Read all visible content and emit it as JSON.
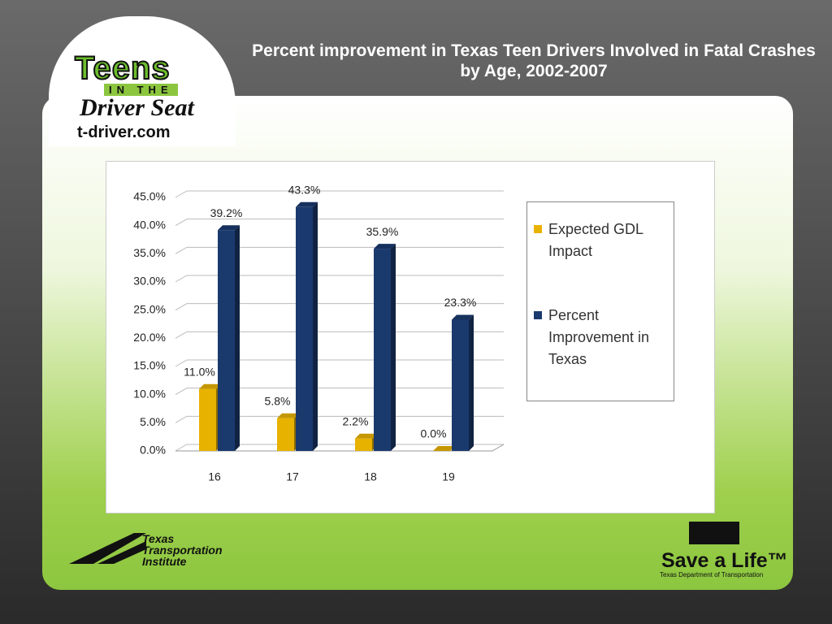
{
  "chart_data": {
    "type": "bar",
    "title": "Percent improvement in Texas Teen Drivers Involved in Fatal Crashes by Age, 2002-2007",
    "categories": [
      "16",
      "17",
      "18",
      "19"
    ],
    "series": [
      {
        "name": "Expected GDL Impact",
        "color": "#e8b200",
        "values": [
          11.0,
          5.8,
          2.2,
          0.0
        ],
        "value_labels": [
          "11.0%",
          "5.8%",
          "2.2%",
          "0.0%"
        ]
      },
      {
        "name": "Percent Improvement in Texas",
        "color": "#1a3a6e",
        "values": [
          39.2,
          43.3,
          35.9,
          23.3
        ],
        "value_labels": [
          "39.2%",
          "43.3%",
          "35.9%",
          "23.3%"
        ]
      }
    ],
    "ylim": [
      0,
      45
    ],
    "yticks": [
      {
        "value": 0,
        "label": "0.0%"
      },
      {
        "value": 5,
        "label": "5.0%"
      },
      {
        "value": 10,
        "label": "10.0%"
      },
      {
        "value": 15,
        "label": "15.0%"
      },
      {
        "value": 20,
        "label": "20.0%"
      },
      {
        "value": 25,
        "label": "25.0%"
      },
      {
        "value": 30,
        "label": "30.0%"
      },
      {
        "value": 35,
        "label": "35.0%"
      },
      {
        "value": 40,
        "label": "40.0%"
      },
      {
        "value": 45,
        "label": "45.0%"
      }
    ],
    "grid": true,
    "legend": "right"
  },
  "branding": {
    "logo_top": "Teens",
    "logo_mid": "IN THE",
    "logo_bottom": "Driver Seat",
    "website": "t-driver.com",
    "tti": "Texas Transportation Institute",
    "save": "Save a Life™",
    "txdot": "Texas Department of Transportation"
  }
}
